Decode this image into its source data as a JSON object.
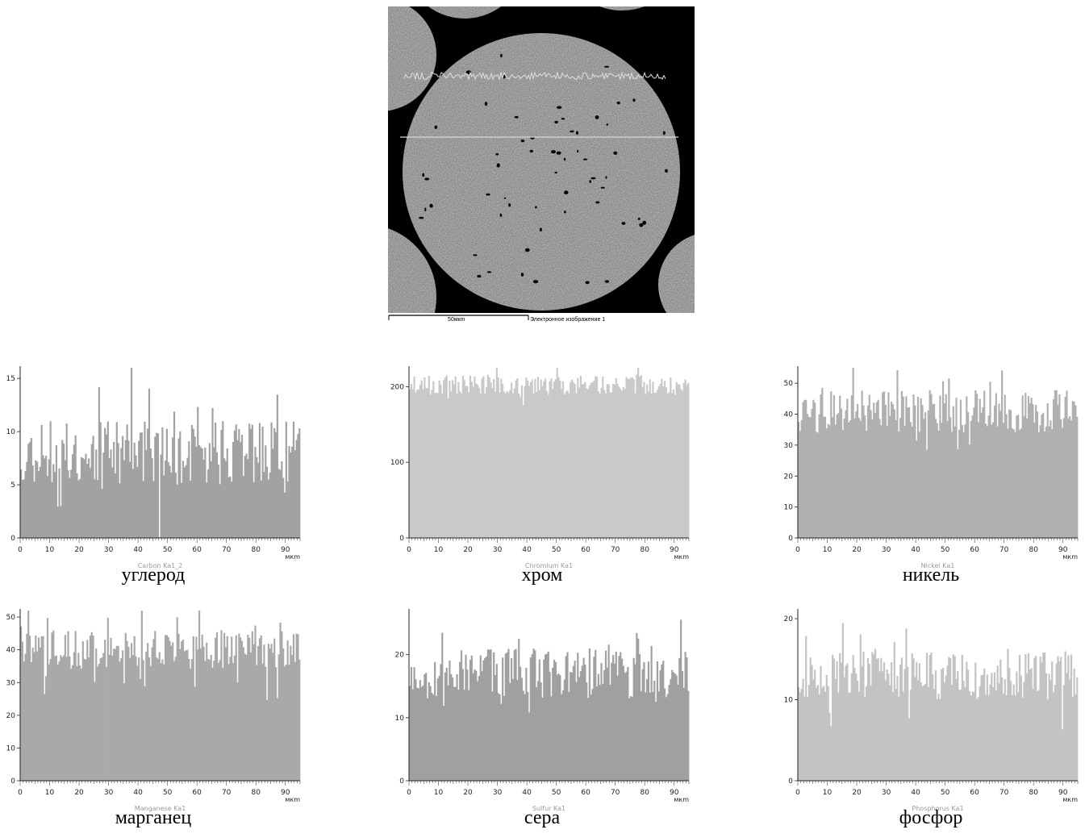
{
  "sem_image": {
    "scale_label": "50мкm",
    "image_label": "Электронное изображение 1",
    "colors": {
      "background": "#000000",
      "specimen": "#8a8a8a"
    }
  },
  "chart_data": [
    {
      "id": "carbon",
      "type": "bar",
      "series_name": "Carbon Ka1_2",
      "caption": "углерод",
      "x_unit": "мкm",
      "xlim": [
        0,
        95
      ],
      "ylim": [
        0,
        16
      ],
      "x_ticks": [
        0,
        10,
        20,
        30,
        40,
        50,
        60,
        70,
        80,
        90
      ],
      "y_ticks": [
        0,
        5,
        10,
        15
      ],
      "baseline": 8,
      "noise": 3,
      "bins": 190,
      "seed": 11,
      "color": "#a2a2a2"
    },
    {
      "id": "chromium",
      "type": "bar",
      "series_name": "Chromium Ka1",
      "caption": "хром",
      "x_unit": "мкm",
      "xlim": [
        0,
        95
      ],
      "ylim": [
        0,
        225
      ],
      "x_ticks": [
        0,
        10,
        20,
        30,
        40,
        50,
        60,
        70,
        80,
        90
      ],
      "y_ticks": [
        0,
        100,
        200
      ],
      "baseline": 203,
      "noise": 13,
      "bins": 190,
      "seed": 23,
      "color": "#c9c9c9"
    },
    {
      "id": "nickel",
      "type": "bar",
      "series_name": "Nickel Ka1",
      "caption": "никель",
      "x_unit": "мкm",
      "xlim": [
        0,
        95
      ],
      "ylim": [
        0,
        55
      ],
      "x_ticks": [
        0,
        10,
        20,
        30,
        40,
        50,
        60,
        70,
        80,
        90
      ],
      "y_ticks": [
        0,
        10,
        20,
        30,
        40,
        50
      ],
      "baseline": 41,
      "noise": 7,
      "bins": 190,
      "seed": 37,
      "color": "#b0b0b0"
    },
    {
      "id": "manganese",
      "type": "bar",
      "series_name": "Manganese Ka1",
      "caption": "марганец",
      "x_unit": "мкm",
      "xlim": [
        0,
        95
      ],
      "ylim": [
        0,
        52
      ],
      "x_ticks": [
        0,
        10,
        20,
        30,
        40,
        50,
        60,
        70,
        80,
        90
      ],
      "y_ticks": [
        0,
        10,
        20,
        30,
        40,
        50
      ],
      "baseline": 40,
      "noise": 6,
      "bins": 190,
      "seed": 41,
      "color": "#a9a9a9"
    },
    {
      "id": "sulfur",
      "type": "bar",
      "series_name": "Sulfur Ka1",
      "caption": "сера",
      "x_unit": "мкm",
      "xlim": [
        0,
        95
      ],
      "ylim": [
        0,
        27
      ],
      "x_ticks": [
        0,
        10,
        20,
        30,
        40,
        50,
        60,
        70,
        80,
        90
      ],
      "y_ticks": [
        0,
        10,
        20
      ],
      "baseline": 17,
      "noise": 4,
      "bins": 190,
      "seed": 53,
      "color": "#a0a0a0"
    },
    {
      "id": "phosphorus",
      "type": "bar",
      "series_name": "Phosphorus Ka1",
      "caption": "фосфор",
      "x_unit": "мкm",
      "xlim": [
        0,
        95
      ],
      "ylim": [
        0,
        21
      ],
      "x_ticks": [
        0,
        10,
        20,
        30,
        40,
        50,
        60,
        70,
        80,
        90
      ],
      "y_ticks": [
        0,
        10,
        20
      ],
      "baseline": 13,
      "noise": 3,
      "bins": 190,
      "seed": 67,
      "color": "#c3c3c3"
    }
  ]
}
